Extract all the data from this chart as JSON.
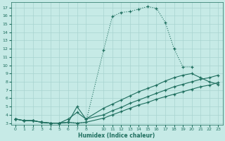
{
  "xlabel": "Humidex (Indice chaleur)",
  "xlim": [
    -0.5,
    23.5
  ],
  "ylim": [
    2.8,
    17.6
  ],
  "yticks": [
    3,
    4,
    5,
    6,
    7,
    8,
    9,
    10,
    11,
    12,
    13,
    14,
    15,
    16,
    17
  ],
  "xticks": [
    0,
    1,
    2,
    3,
    4,
    5,
    6,
    7,
    8,
    10,
    11,
    12,
    13,
    14,
    15,
    16,
    17,
    18,
    19,
    20,
    21,
    22,
    23
  ],
  "bg_color": "#c6eae6",
  "grid_color": "#a8d4d0",
  "line_color": "#1e6e5e",
  "lines": [
    {
      "x": [
        0,
        1,
        2,
        3,
        4,
        5,
        6,
        7,
        8,
        10,
        11,
        12,
        13,
        14,
        15,
        16,
        17,
        18,
        19,
        20
      ],
      "y": [
        3.5,
        3.3,
        3.3,
        3.1,
        3.0,
        3.0,
        3.1,
        3.0,
        3.1,
        11.8,
        15.9,
        16.4,
        16.5,
        16.8,
        17.1,
        16.9,
        15.2,
        12.0,
        9.8,
        9.8
      ],
      "linestyle": ":"
    },
    {
      "x": [
        0,
        1,
        2,
        3,
        4,
        5,
        6,
        7,
        8,
        10,
        11,
        12,
        13,
        14,
        15,
        16,
        17,
        18,
        19,
        20,
        21,
        22,
        23
      ],
      "y": [
        3.5,
        3.3,
        3.3,
        3.1,
        3.0,
        3.0,
        3.1,
        5.0,
        3.5,
        4.8,
        5.3,
        5.8,
        6.3,
        6.8,
        7.2,
        7.6,
        8.1,
        8.5,
        8.8,
        9.0,
        8.5,
        8.0,
        7.7
      ],
      "linestyle": "-"
    },
    {
      "x": [
        0,
        1,
        2,
        3,
        4,
        5,
        6,
        7,
        8,
        10,
        11,
        12,
        13,
        14,
        15,
        16,
        17,
        18,
        19,
        20,
        21,
        22,
        23
      ],
      "y": [
        3.5,
        3.3,
        3.3,
        3.1,
        3.0,
        3.0,
        3.5,
        4.3,
        3.5,
        4.0,
        4.5,
        4.9,
        5.4,
        5.8,
        6.2,
        6.6,
        7.0,
        7.4,
        7.7,
        8.0,
        8.3,
        8.5,
        8.8
      ],
      "linestyle": "-"
    },
    {
      "x": [
        0,
        1,
        2,
        3,
        4,
        5,
        6,
        7,
        8,
        10,
        11,
        12,
        13,
        14,
        15,
        16,
        17,
        18,
        19,
        20,
        21,
        22,
        23
      ],
      "y": [
        3.5,
        3.3,
        3.3,
        3.1,
        3.0,
        3.0,
        3.1,
        3.0,
        3.1,
        3.6,
        4.0,
        4.4,
        4.8,
        5.2,
        5.5,
        5.9,
        6.2,
        6.5,
        6.8,
        7.1,
        7.4,
        7.6,
        7.9
      ],
      "linestyle": "-"
    }
  ]
}
